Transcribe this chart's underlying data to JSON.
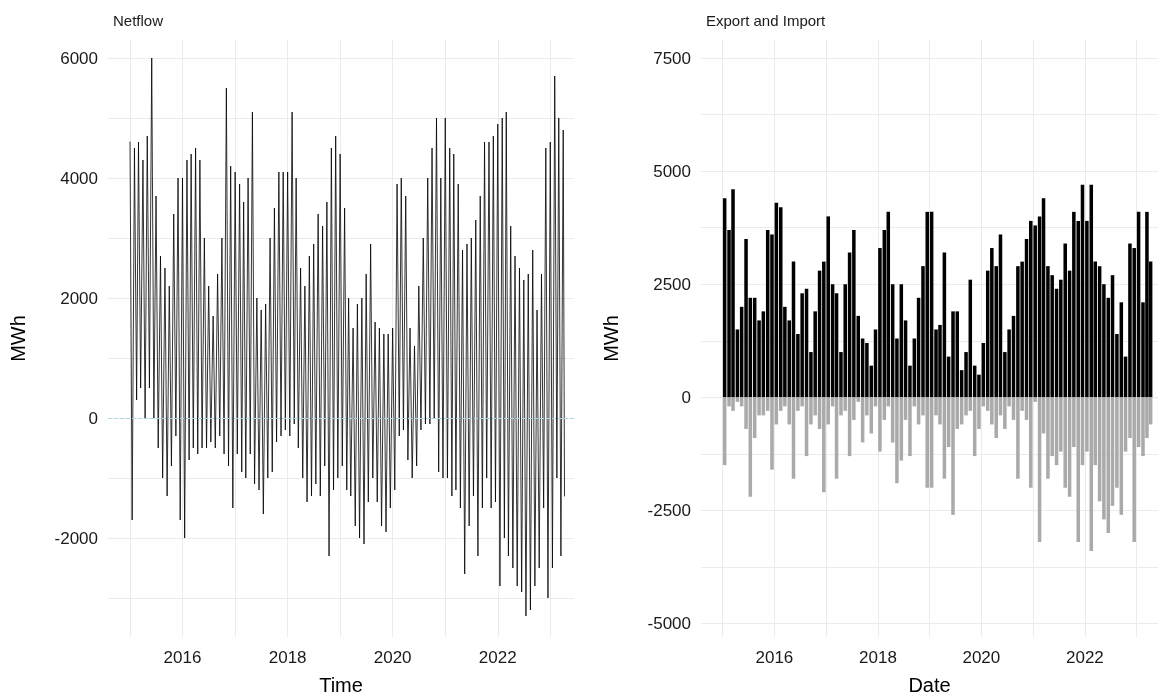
{
  "chart_data": [
    {
      "type": "line",
      "title": "Netflow",
      "xlabel": "Time",
      "ylabel": "MWh",
      "grid": true,
      "marker": "none",
      "line_style": "solid",
      "xlim": [
        "2014-08-01",
        "2023-06-15"
      ],
      "ylim": [
        -3650,
        6300
      ],
      "xticks": [
        {
          "value": "2015-01-01",
          "label": null
        },
        {
          "value": "2016-01-01",
          "label": "2016"
        },
        {
          "value": "2017-01-01",
          "label": null
        },
        {
          "value": "2018-01-01",
          "label": "2018"
        },
        {
          "value": "2019-01-01",
          "label": null
        },
        {
          "value": "2020-01-01",
          "label": "2020"
        },
        {
          "value": "2021-01-01",
          "label": null
        },
        {
          "value": "2022-01-01",
          "label": "2022"
        },
        {
          "value": "2023-01-01",
          "label": null
        }
      ],
      "yticks": [
        {
          "value": -3000,
          "label": null
        },
        -2000,
        {
          "value": -1000,
          "label": null
        },
        0,
        {
          "value": 1000,
          "label": null
        },
        2000,
        {
          "value": 3000,
          "label": null
        },
        4000,
        {
          "value": 5000,
          "label": null
        },
        6000
      ],
      "ref_lines": [
        {
          "axis": "y",
          "value": 0,
          "color": "#add8e6",
          "line_style": "dashed"
        }
      ],
      "x": [
        "2015-01-01",
        "2015-01-16",
        "2015-02-01",
        "2015-02-16",
        "2015-03-01",
        "2015-03-16",
        "2015-04-01",
        "2015-04-16",
        "2015-05-01",
        "2015-05-16",
        "2015-06-01",
        "2015-06-16",
        "2015-07-01",
        "2015-07-16",
        "2015-08-01",
        "2015-08-16",
        "2015-09-01",
        "2015-09-16",
        "2015-10-01",
        "2015-10-16",
        "2015-11-01",
        "2015-11-16",
        "2015-12-01",
        "2015-12-16",
        "2016-01-01",
        "2016-01-16",
        "2016-02-01",
        "2016-02-16",
        "2016-03-01",
        "2016-03-16",
        "2016-04-01",
        "2016-04-16",
        "2016-05-01",
        "2016-05-16",
        "2016-06-01",
        "2016-06-16",
        "2016-07-01",
        "2016-07-16",
        "2016-08-01",
        "2016-08-16",
        "2016-09-01",
        "2016-09-16",
        "2016-10-01",
        "2016-10-16",
        "2016-11-01",
        "2016-11-16",
        "2016-12-01",
        "2016-12-16",
        "2017-01-01",
        "2017-01-16",
        "2017-02-01",
        "2017-02-16",
        "2017-03-01",
        "2017-03-16",
        "2017-04-01",
        "2017-04-16",
        "2017-05-01",
        "2017-05-16",
        "2017-06-01",
        "2017-06-16",
        "2017-07-01",
        "2017-07-16",
        "2017-08-01",
        "2017-08-16",
        "2017-09-01",
        "2017-09-16",
        "2017-10-01",
        "2017-10-16",
        "2017-11-01",
        "2017-11-16",
        "2017-12-01",
        "2017-12-16",
        "2018-01-01",
        "2018-01-16",
        "2018-02-01",
        "2018-02-16",
        "2018-03-01",
        "2018-03-16",
        "2018-04-01",
        "2018-04-16",
        "2018-05-01",
        "2018-05-16",
        "2018-06-01",
        "2018-06-16",
        "2018-07-01",
        "2018-07-16",
        "2018-08-01",
        "2018-08-16",
        "2018-09-01",
        "2018-09-16",
        "2018-10-01",
        "2018-10-16",
        "2018-11-01",
        "2018-11-16",
        "2018-12-01",
        "2018-12-16",
        "2019-01-01",
        "2019-01-16",
        "2019-02-01",
        "2019-02-16",
        "2019-03-01",
        "2019-03-16",
        "2019-04-01",
        "2019-04-16",
        "2019-05-01",
        "2019-05-16",
        "2019-06-01",
        "2019-06-16",
        "2019-07-01",
        "2019-07-16",
        "2019-08-01",
        "2019-08-16",
        "2019-09-01",
        "2019-09-16",
        "2019-10-01",
        "2019-10-16",
        "2019-11-01",
        "2019-11-16",
        "2019-12-01",
        "2019-12-16",
        "2020-01-01",
        "2020-01-16",
        "2020-02-01",
        "2020-02-16",
        "2020-03-01",
        "2020-03-16",
        "2020-04-01",
        "2020-04-16",
        "2020-05-01",
        "2020-05-16",
        "2020-06-01",
        "2020-06-16",
        "2020-07-01",
        "2020-07-16",
        "2020-08-01",
        "2020-08-16",
        "2020-09-01",
        "2020-09-16",
        "2020-10-01",
        "2020-10-16",
        "2020-11-01",
        "2020-11-16",
        "2020-12-01",
        "2020-12-16",
        "2021-01-01",
        "2021-01-16",
        "2021-02-01",
        "2021-02-16",
        "2021-03-01",
        "2021-03-16",
        "2021-04-01",
        "2021-04-16",
        "2021-05-01",
        "2021-05-16",
        "2021-06-01",
        "2021-06-16",
        "2021-07-01",
        "2021-07-16",
        "2021-08-01",
        "2021-08-16",
        "2021-09-01",
        "2021-09-16",
        "2021-10-01",
        "2021-10-16",
        "2021-11-01",
        "2021-11-16",
        "2021-12-01",
        "2021-12-16",
        "2022-01-01",
        "2022-01-16",
        "2022-02-01",
        "2022-02-16",
        "2022-03-01",
        "2022-03-16",
        "2022-04-01",
        "2022-04-16",
        "2022-05-01",
        "2022-05-16",
        "2022-06-01",
        "2022-06-16",
        "2022-07-01",
        "2022-07-16",
        "2022-08-01",
        "2022-08-16",
        "2022-09-01",
        "2022-09-16",
        "2022-10-01",
        "2022-10-16",
        "2022-11-01",
        "2022-11-16",
        "2022-12-01",
        "2022-12-16",
        "2023-01-01",
        "2023-01-16",
        "2023-02-01",
        "2023-02-16",
        "2023-03-01",
        "2023-03-16",
        "2023-04-01",
        "2023-04-10"
      ],
      "series": [
        {
          "color": "#000000",
          "values": [
            4600,
            -1700,
            4500,
            300,
            4600,
            500,
            4300,
            0,
            4700,
            500,
            6000,
            0,
            3700,
            -500,
            2700,
            -1000,
            2500,
            -1300,
            2200,
            -800,
            3400,
            -300,
            4000,
            -1700,
            4000,
            -2000,
            4300,
            -700,
            4400,
            -500,
            4500,
            -600,
            4300,
            -500,
            3000,
            -500,
            2200,
            -400,
            1700,
            -500,
            2400,
            -300,
            3000,
            -600,
            5500,
            -800,
            4200,
            -1500,
            4100,
            -600,
            3900,
            -900,
            3600,
            -1000,
            4000,
            -600,
            5100,
            -1100,
            2000,
            -1200,
            1800,
            -1600,
            1900,
            -1000,
            3000,
            -900,
            3500,
            -400,
            4100,
            -300,
            4100,
            -200,
            4100,
            -300,
            5100,
            -100,
            4000,
            -500,
            2500,
            -1000,
            2200,
            -1400,
            2700,
            -1300,
            2900,
            -1100,
            3400,
            -1300,
            3200,
            -800,
            3600,
            -2300,
            4500,
            -1200,
            4700,
            -1000,
            4400,
            -800,
            3500,
            -1200,
            2000,
            -1300,
            1500,
            -1800,
            1900,
            -2000,
            2000,
            -2100,
            2400,
            -1400,
            2900,
            -1000,
            1600,
            -1400,
            1500,
            -1800,
            1400,
            -1900,
            1400,
            -1500,
            1500,
            -1200,
            3900,
            -300,
            4000,
            -200,
            3700,
            -700,
            1500,
            -1000,
            1200,
            -800,
            2200,
            -200,
            3000,
            -100,
            4000,
            -100,
            4500,
            0,
            5000,
            -900,
            4000,
            -1000,
            5000,
            -1000,
            4500,
            -1300,
            4400,
            -1200,
            3900,
            -1500,
            2800,
            -2600,
            2900,
            -1800,
            3000,
            -1300,
            3300,
            -2300,
            3700,
            -1500,
            4600,
            -1000,
            4600,
            -1500,
            4700,
            -1400,
            4900,
            -2800,
            5000,
            -2000,
            5100,
            -2300,
            3200,
            -2500,
            2700,
            -2800,
            2500,
            -2900,
            2300,
            -3300,
            2400,
            -3200,
            2800,
            -2800,
            1800,
            -2500,
            2400,
            -1500,
            4500,
            -3000,
            4600,
            -2500,
            5700,
            -1000,
            5000,
            -2300,
            4800,
            -1300
          ]
        }
      ]
    },
    {
      "type": "bar",
      "stacked": true,
      "title": "Export and Import",
      "xlabel": "Date",
      "ylabel": "MWh",
      "grid": true,
      "xlim": [
        "2014-08-01",
        "2023-06-01"
      ],
      "ylim": [
        -5300,
        7900
      ],
      "xticks": [
        {
          "value": "2015-01-01",
          "label": null
        },
        {
          "value": "2016-01-01",
          "label": "2016"
        },
        {
          "value": "2017-01-01",
          "label": null
        },
        {
          "value": "2018-01-01",
          "label": "2018"
        },
        {
          "value": "2019-01-01",
          "label": null
        },
        {
          "value": "2020-01-01",
          "label": "2020"
        },
        {
          "value": "2021-01-01",
          "label": null
        },
        {
          "value": "2022-01-01",
          "label": "2022"
        },
        {
          "value": "2023-01-01",
          "label": null
        }
      ],
      "yticks": [
        -5000,
        {
          "value": -3750,
          "label": null
        },
        -2500,
        {
          "value": -1250,
          "label": null
        },
        0,
        {
          "value": 1250,
          "label": null
        },
        2500,
        {
          "value": 3750,
          "label": null
        },
        5000,
        {
          "value": 6250,
          "label": null
        },
        7500
      ],
      "x": [
        "2015-01-15",
        "2015-02-15",
        "2015-03-15",
        "2015-04-15",
        "2015-05-15",
        "2015-06-15",
        "2015-07-15",
        "2015-08-15",
        "2015-09-15",
        "2015-10-15",
        "2015-11-15",
        "2015-12-15",
        "2016-01-15",
        "2016-02-15",
        "2016-03-15",
        "2016-04-15",
        "2016-05-15",
        "2016-06-15",
        "2016-07-15",
        "2016-08-15",
        "2016-09-15",
        "2016-10-15",
        "2016-11-15",
        "2016-12-15",
        "2017-01-15",
        "2017-02-15",
        "2017-03-15",
        "2017-04-15",
        "2017-05-15",
        "2017-06-15",
        "2017-07-15",
        "2017-08-15",
        "2017-09-15",
        "2017-10-15",
        "2017-11-15",
        "2017-12-15",
        "2018-01-15",
        "2018-02-15",
        "2018-03-15",
        "2018-04-15",
        "2018-05-15",
        "2018-06-15",
        "2018-07-15",
        "2018-08-15",
        "2018-09-15",
        "2018-10-15",
        "2018-11-15",
        "2018-12-15",
        "2019-01-15",
        "2019-02-15",
        "2019-03-15",
        "2019-04-15",
        "2019-05-15",
        "2019-06-15",
        "2019-07-15",
        "2019-08-15",
        "2019-09-15",
        "2019-10-15",
        "2019-11-15",
        "2019-12-15",
        "2020-01-15",
        "2020-02-15",
        "2020-03-15",
        "2020-04-15",
        "2020-05-15",
        "2020-06-15",
        "2020-07-15",
        "2020-08-15",
        "2020-09-15",
        "2020-10-15",
        "2020-11-15",
        "2020-12-15",
        "2021-01-15",
        "2021-02-15",
        "2021-03-15",
        "2021-04-15",
        "2021-05-15",
        "2021-06-15",
        "2021-07-15",
        "2021-08-15",
        "2021-09-15",
        "2021-10-15",
        "2021-11-15",
        "2021-12-15",
        "2022-01-15",
        "2022-02-15",
        "2022-03-15",
        "2022-04-15",
        "2022-05-15",
        "2022-06-15",
        "2022-07-15",
        "2022-08-15",
        "2022-09-15",
        "2022-10-15",
        "2022-11-15",
        "2022-12-15",
        "2023-01-15",
        "2023-02-15",
        "2023-03-15",
        "2023-04-10"
      ],
      "series": [
        {
          "color": "#000000",
          "values": [
            4400,
            3700,
            4600,
            1500,
            2000,
            3500,
            2200,
            2200,
            1700,
            1900,
            3700,
            3600,
            4300,
            4200,
            2000,
            1700,
            3000,
            1400,
            2300,
            2400,
            1000,
            1900,
            2800,
            3000,
            4000,
            2500,
            2300,
            1000,
            2500,
            3200,
            3700,
            1800,
            1300,
            1200,
            700,
            1500,
            3300,
            3700,
            4100,
            2500,
            1300,
            2500,
            1700,
            700,
            1300,
            2200,
            2900,
            4100,
            4100,
            1500,
            1600,
            3200,
            900,
            1900,
            1900,
            600,
            1000,
            2600,
            700,
            500,
            1200,
            2800,
            3300,
            2900,
            3600,
            1000,
            1500,
            1800,
            2900,
            3000,
            3500,
            3900,
            3800,
            4000,
            4400,
            2900,
            2700,
            2400,
            2600,
            3400,
            2800,
            4100,
            3900,
            4700,
            3900,
            4700,
            3000,
            2900,
            2500,
            2200,
            2700,
            1400,
            2100,
            900,
            3400,
            3300,
            4100,
            2100,
            4100,
            3000
          ]
        },
        {
          "color": "#aaaaaa",
          "values": [
            -1500,
            -200,
            -300,
            -100,
            -200,
            -700,
            -2200,
            -900,
            -400,
            -400,
            -300,
            -1600,
            -600,
            -300,
            -200,
            -600,
            -1800,
            -300,
            -200,
            -1300,
            -600,
            -400,
            -700,
            -2100,
            -600,
            -200,
            -1800,
            -400,
            -300,
            -1300,
            -500,
            -100,
            -1000,
            -400,
            -800,
            -200,
            -1200,
            -500,
            -200,
            -1000,
            -1900,
            -1400,
            -500,
            -1300,
            -200,
            -600,
            -400,
            -2000,
            -2000,
            -400,
            -600,
            -1800,
            -1100,
            -2600,
            -700,
            -600,
            -400,
            -300,
            -1300,
            -700,
            -200,
            -300,
            -600,
            -900,
            -400,
            -700,
            -200,
            -500,
            -1800,
            -300,
            -500,
            -2000,
            -100,
            -3200,
            -800,
            -1800,
            -1300,
            -1500,
            -1200,
            -2000,
            -2200,
            -1100,
            -3200,
            -1500,
            -1200,
            -3400,
            -1500,
            -2300,
            -2700,
            -3000,
            -2400,
            -2000,
            -2600,
            -1200,
            -900,
            -3200,
            -1100,
            -1300,
            -900,
            -600
          ]
        }
      ]
    }
  ]
}
